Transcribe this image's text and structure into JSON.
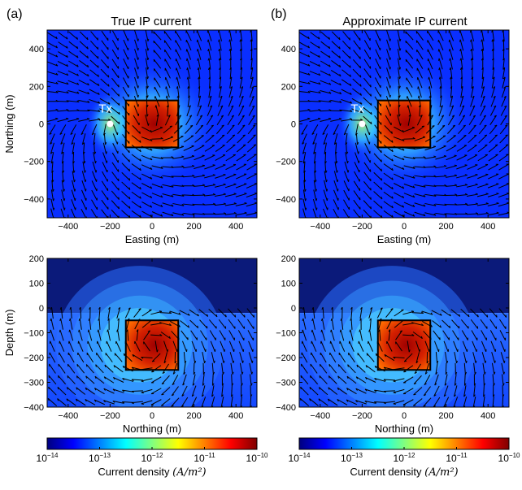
{
  "chart_data": [
    {
      "type": "heatmap",
      "panel_label": "(a)",
      "title": "True IP current",
      "view": "plan",
      "xlabel": "Easting (m)",
      "ylabel": "Northing (m)",
      "xlim": [
        -500,
        500
      ],
      "ylim": [
        -500,
        500
      ],
      "xticks": [
        "−400",
        "−200",
        "0",
        "200",
        "400"
      ],
      "xtick_values": [
        -400,
        -200,
        0,
        200,
        400
      ],
      "yticks": [
        "−400",
        "−200",
        "0",
        "200",
        "400"
      ],
      "ytick_values": [
        -400,
        -200,
        0,
        200,
        400
      ],
      "block": {
        "x": [
          -125,
          125
        ],
        "y": [
          -125,
          125
        ]
      },
      "source": {
        "label": "Tx",
        "x": -200,
        "y": 0
      },
      "field": "current density with arrows showing direction"
    },
    {
      "type": "heatmap",
      "panel_label": "(b)",
      "title": "Approximate IP current",
      "view": "plan",
      "xlabel": "Easting (m)",
      "ylabel": "",
      "xlim": [
        -500,
        500
      ],
      "ylim": [
        -500,
        500
      ],
      "xticks": [
        "−400",
        "−200",
        "0",
        "200",
        "400"
      ],
      "xtick_values": [
        -400,
        -200,
        0,
        200,
        400
      ],
      "yticks": [
        "−400",
        "−200",
        "0",
        "200",
        "400"
      ],
      "ytick_values": [
        -400,
        -200,
        0,
        200,
        400
      ],
      "block": {
        "x": [
          -125,
          125
        ],
        "y": [
          -125,
          125
        ]
      },
      "source": {
        "label": "Tx",
        "x": -200,
        "y": 0
      },
      "field": "current density with arrows showing direction"
    },
    {
      "type": "heatmap",
      "panel_label": "",
      "title": "",
      "view": "section",
      "xlabel": "Northing (m)",
      "ylabel": "Depth (m)",
      "xlim": [
        -500,
        500
      ],
      "ylim": [
        -400,
        200
      ],
      "xticks": [
        "−400",
        "−200",
        "0",
        "200",
        "400"
      ],
      "xtick_values": [
        -400,
        -200,
        0,
        200,
        400
      ],
      "yticks": [
        "200",
        "100",
        "0",
        "−100",
        "−200",
        "−300",
        "−400"
      ],
      "ytick_values": [
        200,
        100,
        0,
        -100,
        -200,
        -300,
        -400
      ],
      "block": {
        "x": [
          -125,
          125
        ],
        "y": [
          -250,
          -50
        ]
      },
      "surface_depth": -20
    },
    {
      "type": "heatmap",
      "panel_label": "",
      "title": "",
      "view": "section",
      "xlabel": "Northing (m)",
      "ylabel": "",
      "xlim": [
        -500,
        500
      ],
      "ylim": [
        -400,
        200
      ],
      "xticks": [
        "−400",
        "−200",
        "0",
        "200",
        "400"
      ],
      "xtick_values": [
        -400,
        -200,
        0,
        200,
        400
      ],
      "yticks": [
        "200",
        "100",
        "0",
        "−100",
        "−200",
        "−300",
        "−400"
      ],
      "ytick_values": [
        200,
        100,
        0,
        -100,
        -200,
        -300,
        -400
      ],
      "block": {
        "x": [
          -125,
          125
        ],
        "y": [
          -250,
          -50
        ]
      },
      "surface_depth": -20
    }
  ],
  "colorbars": [
    {
      "label": "Current density (A/m²)",
      "label_plain": "Current density ",
      "label_units": "(A/m²)",
      "scale": "log",
      "range": [
        -14,
        -10
      ],
      "tick_values": [
        -14,
        -13,
        -12,
        -11,
        -10
      ],
      "colormap": "jet"
    },
    {
      "label": "Current density (A/m²)",
      "label_plain": "Current density ",
      "label_units": "(A/m²)",
      "scale": "log",
      "range": [
        -14,
        -10
      ],
      "tick_values": [
        -14,
        -13,
        -12,
        -11,
        -10
      ],
      "colormap": "jet"
    }
  ],
  "colors": {
    "background_field": "#0a2fff",
    "block_fill": "#c81000",
    "air": "#0b1a7a",
    "arrow": "#000000",
    "box_outline": "#000000",
    "source_marker": "#ffffff"
  }
}
